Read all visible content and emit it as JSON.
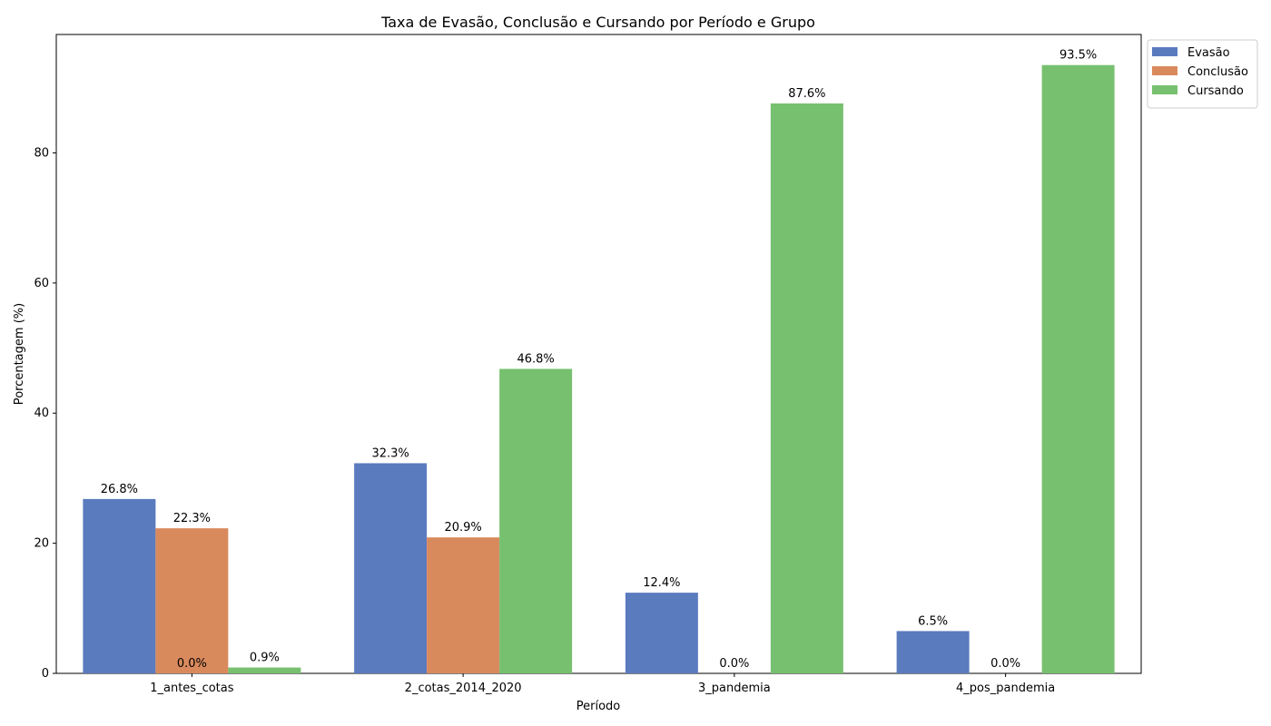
{
  "chart_data": {
    "type": "bar",
    "title": "Taxa de Evasão, Conclusão e Cursando por Período e Grupo",
    "xlabel": "Período",
    "ylabel": "Porcentagem (%)",
    "ylim": [
      0,
      98.2
    ],
    "yticks": [
      "0",
      "20",
      "40",
      "60",
      "80"
    ],
    "categories": [
      "1_antes_cotas",
      "2_cotas_2014_2020",
      "3_pandemia",
      "4_pos_pandemia"
    ],
    "series": [
      {
        "name": "Evasão",
        "color": "#5b7bbf",
        "values": [
          26.8,
          32.3,
          12.4,
          6.5
        ],
        "labels": [
          "26.8%",
          "32.3%",
          "12.4%",
          "6.5%"
        ]
      },
      {
        "name": "Conclusão",
        "color": "#d98a5d",
        "values": [
          22.3,
          20.9,
          0.0,
          0.0
        ],
        "labels": [
          "22.3%",
          "20.9%",
          "0.0%",
          "0.0%"
        ]
      },
      {
        "name": "Cursando",
        "color": "#77c06f",
        "values": [
          0.9,
          46.8,
          87.6,
          93.5
        ],
        "labels": [
          "0.9%",
          "46.8%",
          "87.6%",
          "93.5%"
        ]
      }
    ],
    "extra_labels": [
      {
        "category_index": 0,
        "series_index": 1,
        "label": "0.0%"
      }
    ],
    "legend_position": "upper-right-outside",
    "grid": false
  }
}
